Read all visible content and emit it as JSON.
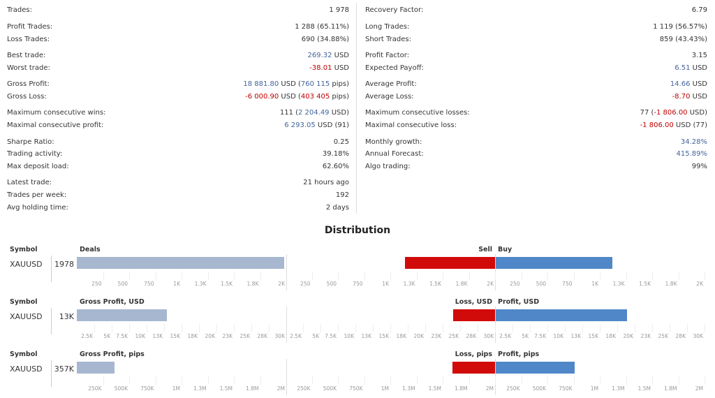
{
  "stats": {
    "left": [
      {
        "label": "Trades:",
        "value": [
          {
            "t": "1 978",
            "c": ""
          }
        ]
      },
      {
        "label": "Profit Trades:",
        "value": [
          {
            "t": "1 288 (65.11%)",
            "c": ""
          }
        ]
      },
      {
        "label": "Loss Trades:",
        "value": [
          {
            "t": "690 (34.88%)",
            "c": ""
          }
        ]
      },
      {
        "label": "Best trade:",
        "value": [
          {
            "t": "269.32",
            "c": "blue"
          },
          {
            "t": " USD",
            "c": ""
          }
        ]
      },
      {
        "label": "Worst trade:",
        "value": [
          {
            "t": "-38.01",
            "c": "red"
          },
          {
            "t": " USD",
            "c": ""
          }
        ]
      },
      {
        "label": "Gross Profit:",
        "value": [
          {
            "t": "18 881.80",
            "c": "blue"
          },
          {
            "t": " USD (",
            "c": ""
          },
          {
            "t": "760 115",
            "c": "blue"
          },
          {
            "t": " pips)",
            "c": ""
          }
        ]
      },
      {
        "label": "Gross Loss:",
        "value": [
          {
            "t": "-6 000.90",
            "c": "red"
          },
          {
            "t": " USD (",
            "c": ""
          },
          {
            "t": "403 405",
            "c": "red"
          },
          {
            "t": " pips)",
            "c": ""
          }
        ]
      },
      {
        "label": "Maximum consecutive wins:",
        "value": [
          {
            "t": "111 (",
            "c": ""
          },
          {
            "t": "2 204.49",
            "c": "blue"
          },
          {
            "t": " USD)",
            "c": ""
          }
        ]
      },
      {
        "label": "Maximal consecutive profit:",
        "value": [
          {
            "t": "6 293.05",
            "c": "blue"
          },
          {
            "t": " USD (91)",
            "c": ""
          }
        ]
      },
      {
        "label": "Sharpe Ratio:",
        "value": [
          {
            "t": "0.25",
            "c": ""
          }
        ]
      },
      {
        "label": "Trading activity:",
        "value": [
          {
            "t": "39.18%",
            "c": ""
          }
        ]
      },
      {
        "label": "Max deposit load:",
        "value": [
          {
            "t": "62.60%",
            "c": ""
          }
        ]
      },
      {
        "label": "Latest trade:",
        "value": [
          {
            "t": "21 hours ago",
            "c": ""
          }
        ]
      },
      {
        "label": "Trades per week:",
        "value": [
          {
            "t": "192",
            "c": ""
          }
        ]
      },
      {
        "label": "Avg holding time:",
        "value": [
          {
            "t": "2 days",
            "c": ""
          }
        ]
      }
    ],
    "right": [
      {
        "label": "Recovery Factor:",
        "value": [
          {
            "t": "6.79",
            "c": ""
          }
        ]
      },
      {
        "label": "Long Trades:",
        "value": [
          {
            "t": "1 119 (56.57%)",
            "c": ""
          }
        ]
      },
      {
        "label": "Short Trades:",
        "value": [
          {
            "t": "859 (43.43%)",
            "c": ""
          }
        ]
      },
      {
        "label": "Profit Factor:",
        "value": [
          {
            "t": "3.15",
            "c": ""
          }
        ]
      },
      {
        "label": "Expected Payoff:",
        "value": [
          {
            "t": "6.51",
            "c": "blue"
          },
          {
            "t": " USD",
            "c": ""
          }
        ]
      },
      {
        "label": "Average Profit:",
        "value": [
          {
            "t": "14.66",
            "c": "blue"
          },
          {
            "t": " USD",
            "c": ""
          }
        ]
      },
      {
        "label": "Average Loss:",
        "value": [
          {
            "t": "-8.70",
            "c": "red"
          },
          {
            "t": " USD",
            "c": ""
          }
        ]
      },
      {
        "label": "Maximum consecutive losses:",
        "value": [
          {
            "t": "77 (",
            "c": ""
          },
          {
            "t": "-1 806.00",
            "c": "red"
          },
          {
            "t": " USD)",
            "c": ""
          }
        ]
      },
      {
        "label": "Maximal consecutive loss:",
        "value": [
          {
            "t": "-1 806.00",
            "c": "red"
          },
          {
            "t": " USD (77)",
            "c": ""
          }
        ]
      },
      {
        "label": "Monthly growth:",
        "value": [
          {
            "t": "34.28%",
            "c": "blue"
          }
        ]
      },
      {
        "label": "Annual Forecast:",
        "value": [
          {
            "t": "415.89%",
            "c": "blue"
          }
        ]
      },
      {
        "label": "Algo trading:",
        "value": [
          {
            "t": "99%",
            "c": ""
          }
        ]
      }
    ]
  },
  "distribution": {
    "title": "Distribution",
    "colors": {
      "deals": "#a7b7d0",
      "loss": "#d10a0a",
      "profit": "#4f87c8",
      "grid": "#dddddd"
    },
    "charts": [
      {
        "symbol_header": "Symbol",
        "symbol": "XAUUSD",
        "total": "1978",
        "main_header": "Deals",
        "main_value": 1978,
        "main_max": 2000,
        "main_ticks": [
          "250",
          "500",
          "750",
          "1K",
          "1.3K",
          "1.5K",
          "1.8K",
          "2K"
        ],
        "left_header": "Sell",
        "right_header": "Buy",
        "left_value": 859,
        "right_value": 1119,
        "side_max": 2000,
        "left_ticks": [
          "2K",
          "1.8K",
          "1.5K",
          "1.3K",
          "1K",
          "750",
          "500",
          "250"
        ],
        "right_ticks": [
          "250",
          "500",
          "750",
          "1K",
          "1.3K",
          "1.5K",
          "1.8K",
          "2K"
        ]
      },
      {
        "symbol_header": "Symbol",
        "symbol": "XAUUSD",
        "total": "13K",
        "main_header": "Gross Profit, USD",
        "main_value": 12881,
        "main_max": 30000,
        "main_ticks": [
          "2.5K",
          "5K",
          "7.5K",
          "10K",
          "13K",
          "15K",
          "18K",
          "20K",
          "23K",
          "25K",
          "28K",
          "30K"
        ],
        "left_header": "Loss, USD",
        "right_header": "Profit, USD",
        "left_value": 6001,
        "right_value": 18882,
        "side_max": 30000,
        "left_ticks": [
          "30K",
          "28K",
          "25K",
          "23K",
          "20K",
          "18K",
          "15K",
          "13K",
          "10K",
          "7.5K",
          "5K",
          "2.5K"
        ],
        "right_ticks": [
          "2.5K",
          "5K",
          "7.5K",
          "10K",
          "13K",
          "15K",
          "18K",
          "20K",
          "23K",
          "25K",
          "28K",
          "30K"
        ]
      },
      {
        "symbol_header": "Symbol",
        "symbol": "XAUUSD",
        "total": "357K",
        "main_header": "Gross Profit, pips",
        "main_value": 356710,
        "main_max": 2000000,
        "main_ticks": [
          "250K",
          "500K",
          "750K",
          "1M",
          "1.3M",
          "1.5M",
          "1.8M",
          "2M"
        ],
        "left_header": "Loss, pips",
        "right_header": "Profit, pips",
        "left_value": 403405,
        "right_value": 760115,
        "side_max": 2000000,
        "left_ticks": [
          "2M",
          "1.8M",
          "1.5M",
          "1.3M",
          "1M",
          "750K",
          "500K",
          "250K"
        ],
        "right_ticks": [
          "250K",
          "500K",
          "750K",
          "1M",
          "1.3M",
          "1.5M",
          "1.8M",
          "2M"
        ]
      }
    ]
  }
}
